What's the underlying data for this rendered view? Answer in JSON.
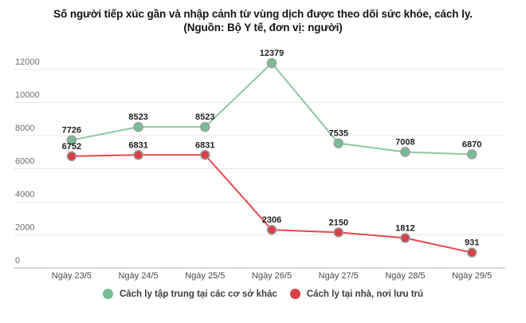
{
  "title": {
    "line1": "Số người tiếp xúc gần và nhập cảnh từ vùng dịch được theo dõi sức khỏe, cách ly.",
    "line2": "(Nguồn: Bộ Y tế, đơn vị: người)"
  },
  "colors": {
    "gridline": "#e8e8e8",
    "zero_axis_line": "#c4c4c4",
    "y_axis_label": "#6e6e6e",
    "x_axis_label": "#4a4a4a",
    "data_label": "#212121",
    "marker_stroke": "#9e9e9e",
    "green_line": "#8bc9a4",
    "green_marker": "#77bd93",
    "red_line": "#e6474e",
    "red_marker": "#d64046"
  },
  "chart_data": {
    "type": "line",
    "title": "Số người tiếp xúc gần và nhập cảnh từ vùng dịch được theo dõi sức khỏe, cách ly.",
    "subtitle": "(Nguồn: Bộ Y tế, đơn vị: người)",
    "categories": [
      "Ngày 23/5",
      "Ngày 24/5",
      "Ngày 25/5",
      "Ngày 26/5",
      "Ngày 27/5",
      "Ngày 28/5",
      "Ngày 29/5"
    ],
    "series": [
      {
        "name": "Cách ly tập trung tại các cơ sở khác",
        "line_color": "#8bc9a4",
        "marker_color": "#77bd93",
        "values": [
          7726,
          8523,
          8523,
          12379,
          7535,
          7008,
          6870
        ]
      },
      {
        "name": "Cách ly tại nhà, nơi lưu trú",
        "line_color": "#e6474e",
        "marker_color": "#d64046",
        "values": [
          6752,
          6831,
          6831,
          2306,
          2150,
          1812,
          931
        ]
      }
    ],
    "yticks": [
      0,
      2000,
      4000,
      6000,
      8000,
      10000,
      12000
    ],
    "ylim": [
      0,
      12000
    ],
    "grid": true,
    "data_labels": true,
    "legend_position": "bottom"
  }
}
